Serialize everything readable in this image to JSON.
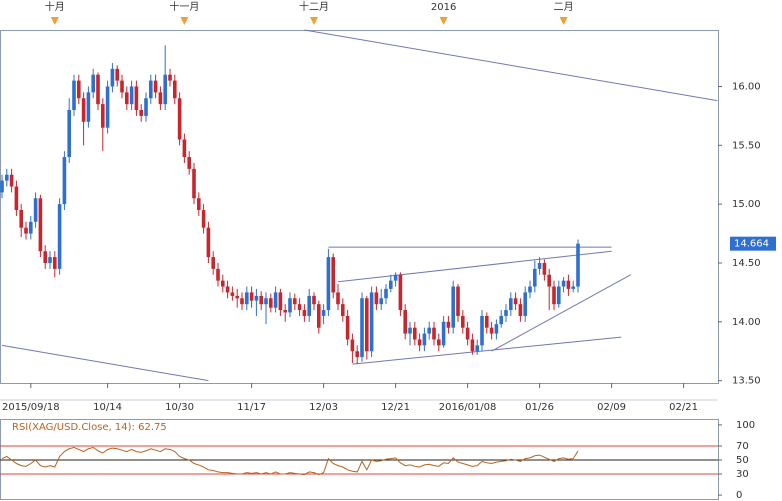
{
  "chart_data": [
    {
      "type": "candlestick",
      "categories": [
        null,
        null,
        null,
        null,
        null,
        null,
        "2015/09/18",
        null,
        null,
        null,
        null,
        null,
        null,
        null,
        null,
        null,
        null,
        null,
        null,
        null,
        null,
        null,
        "10/14",
        null,
        null,
        null,
        null,
        null,
        null,
        null,
        null,
        null,
        null,
        null,
        null,
        null,
        null,
        "10/30",
        null,
        null,
        null,
        null,
        null,
        null,
        null,
        null,
        null,
        null,
        null,
        null,
        null,
        null,
        "11/17",
        null,
        null,
        null,
        null,
        null,
        null,
        null,
        null,
        null,
        null,
        null,
        null,
        null,
        null,
        "12/03",
        null,
        null,
        null,
        null,
        null,
        null,
        null,
        null,
        null,
        null,
        null,
        null,
        null,
        null,
        "12/21",
        null,
        null,
        null,
        null,
        null,
        null,
        null,
        null,
        null,
        null,
        null,
        null,
        null,
        null,
        "2016/01/08",
        null,
        null,
        null,
        null,
        null,
        null,
        null,
        null,
        null,
        null,
        null,
        null,
        null,
        null,
        "01/26",
        null,
        null,
        null,
        null,
        null,
        null,
        null,
        null,
        null,
        null,
        null,
        null,
        null,
        null,
        "02/09",
        null,
        null,
        null,
        null,
        null,
        null,
        null,
        null,
        null,
        null,
        null,
        null,
        null,
        null,
        "02/21",
        null,
        null,
        null,
        null,
        null,
        null,
        null
      ],
      "top_categories": [
        null,
        null,
        null,
        null,
        null,
        null,
        null,
        null,
        null,
        null,
        null,
        "十月",
        null,
        null,
        null,
        null,
        null,
        null,
        null,
        null,
        null,
        null,
        null,
        null,
        null,
        null,
        null,
        null,
        null,
        null,
        null,
        null,
        null,
        null,
        null,
        null,
        null,
        null,
        "十一月",
        null,
        null,
        null,
        null,
        null,
        null,
        null,
        null,
        null,
        null,
        null,
        null,
        null,
        null,
        null,
        null,
        null,
        null,
        null,
        null,
        null,
        null,
        null,
        null,
        null,
        null,
        "十二月",
        null,
        null,
        null,
        null,
        null,
        null,
        null,
        null,
        null,
        null,
        null,
        null,
        null,
        null,
        null,
        null,
        null,
        null,
        null,
        null,
        null,
        null,
        null,
        null,
        null,
        null,
        "2016",
        null,
        null,
        null,
        null,
        null,
        null,
        null,
        null,
        null,
        null,
        null,
        null,
        null,
        null,
        null,
        null,
        null,
        null,
        null,
        null,
        null,
        null,
        null,
        null,
        "二月",
        null,
        null,
        null,
        null,
        null,
        null,
        null,
        null,
        null,
        null,
        null,
        null,
        null,
        null,
        null,
        null,
        null,
        null,
        null,
        null,
        null,
        null,
        null,
        null,
        null,
        null,
        null,
        null,
        null,
        null,
        null,
        null
      ],
      "open": [
        15.1,
        15.2,
        15.25,
        15.15,
        14.95,
        14.8,
        14.75,
        14.85,
        15.05,
        14.6,
        14.5,
        14.55,
        14.45,
        15.0,
        15.4,
        15.8,
        16.05,
        15.9,
        15.7,
        15.95,
        16.1,
        15.85,
        15.65,
        16.0,
        16.15,
        16.05,
        15.95,
        15.85,
        16.0,
        15.8,
        15.75,
        15.9,
        16.05,
        15.95,
        15.85,
        16.1,
        16.05,
        15.9,
        15.55,
        15.4,
        15.3,
        15.05,
        14.95,
        14.8,
        14.55,
        14.45,
        14.35,
        14.3,
        14.25,
        14.22,
        14.2,
        14.15,
        14.25,
        14.18,
        14.22,
        14.15,
        14.2,
        14.12,
        14.25,
        14.1,
        14.08,
        14.2,
        14.15,
        14.1,
        14.05,
        14.22,
        14.15,
        14.05,
        14.1,
        14.55,
        14.25,
        14.15,
        14.05,
        13.85,
        13.75,
        13.7,
        14.2,
        13.75,
        14.25,
        14.15,
        14.2,
        14.28,
        14.35,
        14.4,
        14.1,
        13.9,
        13.95,
        13.85,
        13.8,
        13.9,
        13.95,
        13.85,
        13.8,
        14.0,
        13.95,
        14.3,
        14.05,
        13.95,
        13.85,
        13.75,
        13.8,
        14.05,
        13.95,
        13.9,
        13.98,
        14.05,
        14.1,
        14.2,
        14.15,
        14.05,
        14.25,
        14.3,
        14.45,
        14.5,
        14.4,
        14.3,
        14.15,
        14.3,
        14.35,
        14.28,
        14.3,
        null,
        null,
        null,
        null,
        null,
        null,
        null,
        null,
        null,
        null,
        null,
        null,
        null,
        null,
        null,
        null,
        null,
        null,
        null,
        null,
        null,
        null,
        null,
        null,
        null,
        null,
        null,
        null,
        null
      ],
      "high": [
        15.25,
        15.3,
        15.3,
        15.2,
        15.0,
        14.85,
        14.9,
        15.1,
        15.08,
        14.65,
        14.6,
        14.6,
        15.05,
        15.45,
        15.9,
        16.1,
        16.1,
        15.95,
        16.0,
        16.15,
        16.12,
        15.9,
        16.05,
        16.2,
        16.18,
        16.1,
        16.0,
        16.05,
        16.05,
        15.85,
        15.95,
        16.1,
        16.1,
        16.0,
        16.35,
        16.15,
        16.1,
        15.95,
        15.6,
        15.45,
        15.35,
        15.1,
        15.0,
        14.85,
        14.6,
        14.5,
        14.4,
        14.35,
        14.3,
        14.28,
        14.25,
        14.3,
        14.3,
        14.28,
        14.26,
        14.25,
        14.24,
        14.3,
        14.28,
        14.15,
        14.25,
        14.24,
        14.2,
        14.15,
        14.28,
        14.25,
        14.18,
        14.15,
        14.62,
        14.58,
        14.32,
        14.2,
        14.1,
        13.9,
        13.8,
        14.25,
        14.22,
        14.3,
        14.3,
        14.28,
        14.32,
        14.4,
        14.42,
        14.42,
        14.15,
        14.0,
        14.0,
        13.9,
        13.95,
        14.0,
        14.0,
        13.9,
        14.05,
        14.05,
        14.35,
        14.32,
        14.1,
        14.0,
        13.9,
        13.85,
        14.1,
        14.08,
        14.0,
        14.02,
        14.1,
        14.15,
        14.25,
        14.25,
        14.2,
        14.3,
        14.35,
        14.52,
        14.55,
        14.53,
        14.45,
        14.35,
        14.35,
        14.38,
        14.4,
        14.35,
        14.7,
        null,
        null,
        null,
        null,
        null,
        null,
        null,
        null,
        null,
        null,
        null,
        null,
        null,
        null,
        null,
        null,
        null,
        null,
        null,
        null,
        null,
        null,
        null,
        null,
        null,
        null,
        null,
        null,
        null
      ],
      "low": [
        15.05,
        15.15,
        15.1,
        14.9,
        14.72,
        14.7,
        14.7,
        14.8,
        14.55,
        14.45,
        14.45,
        14.38,
        14.4,
        14.95,
        15.35,
        15.75,
        15.85,
        15.5,
        15.65,
        15.9,
        15.8,
        15.45,
        15.6,
        15.95,
        16.0,
        15.9,
        15.8,
        15.8,
        15.75,
        15.7,
        15.7,
        15.85,
        15.9,
        15.8,
        15.8,
        16.0,
        15.85,
        15.5,
        15.35,
        15.25,
        15.0,
        14.9,
        14.75,
        14.5,
        14.4,
        14.3,
        14.25,
        14.2,
        14.18,
        14.12,
        14.1,
        14.1,
        14.12,
        14.05,
        14.1,
        13.98,
        14.08,
        14.08,
        14.05,
        14.0,
        14.04,
        14.1,
        14.05,
        14.0,
        14.0,
        14.1,
        13.9,
        13.98,
        14.05,
        14.2,
        14.1,
        14.0,
        13.8,
        13.65,
        13.64,
        13.66,
        13.68,
        13.7,
        14.1,
        14.1,
        14.15,
        14.25,
        14.3,
        14.05,
        13.85,
        13.8,
        13.8,
        13.75,
        13.75,
        13.85,
        13.8,
        13.75,
        13.78,
        13.9,
        13.9,
        14.0,
        13.9,
        13.8,
        13.72,
        13.72,
        13.75,
        13.9,
        13.85,
        13.85,
        13.95,
        14.0,
        14.05,
        14.1,
        14.0,
        14.0,
        14.2,
        14.25,
        14.4,
        14.35,
        14.1,
        14.1,
        14.12,
        14.25,
        14.22,
        14.25,
        14.25,
        null,
        null,
        null,
        null,
        null,
        null,
        null,
        null,
        null,
        null,
        null,
        null,
        null,
        null,
        null,
        null,
        null,
        null,
        null,
        null,
        null,
        null,
        null,
        null,
        null,
        null,
        null,
        null,
        null
      ],
      "close": [
        15.2,
        15.25,
        15.15,
        14.95,
        14.8,
        14.75,
        14.85,
        15.05,
        14.6,
        14.5,
        14.55,
        14.45,
        15.0,
        15.4,
        15.8,
        16.05,
        15.9,
        15.7,
        15.95,
        16.1,
        15.85,
        15.65,
        16.0,
        16.15,
        16.05,
        15.95,
        15.85,
        16.0,
        15.8,
        15.75,
        15.9,
        16.05,
        15.95,
        15.85,
        16.1,
        16.05,
        15.9,
        15.55,
        15.4,
        15.3,
        15.05,
        14.95,
        14.8,
        14.55,
        14.45,
        14.35,
        14.3,
        14.25,
        14.22,
        14.2,
        14.15,
        14.25,
        14.18,
        14.22,
        14.15,
        14.2,
        14.12,
        14.25,
        14.1,
        14.08,
        14.2,
        14.15,
        14.1,
        14.05,
        14.22,
        14.15,
        13.95,
        14.1,
        14.55,
        14.25,
        14.15,
        14.05,
        13.85,
        13.75,
        13.7,
        14.2,
        13.75,
        14.25,
        14.15,
        14.2,
        14.28,
        14.35,
        14.4,
        14.1,
        13.9,
        13.95,
        13.85,
        13.8,
        13.9,
        13.95,
        13.85,
        13.8,
        14.0,
        13.95,
        14.3,
        14.05,
        13.95,
        13.85,
        13.75,
        13.8,
        14.05,
        13.95,
        13.9,
        13.98,
        14.05,
        14.1,
        14.2,
        14.15,
        14.05,
        14.25,
        14.3,
        14.45,
        14.5,
        14.4,
        14.3,
        14.15,
        14.3,
        14.35,
        14.28,
        14.3,
        14.664,
        null,
        null,
        null,
        null,
        null,
        null,
        null,
        null,
        null,
        null,
        null,
        null,
        null,
        null,
        null,
        null,
        null,
        null,
        null,
        null,
        null,
        null,
        null,
        null,
        null,
        null,
        null,
        null,
        null
      ],
      "up_color": "#2f6fd0",
      "down_color": "#c8252c",
      "ylim": [
        13.48,
        16.48
      ],
      "yticks": [
        {
          "value": 13.5,
          "label": "13.50"
        },
        {
          "value": 14,
          "label": "14.00"
        },
        {
          "value": 14.5,
          "label": "14.50"
        },
        {
          "value": 15,
          "label": "15.00"
        },
        {
          "value": 15.5,
          "label": "15.50"
        },
        {
          "value": 16,
          "label": "16.00"
        }
      ],
      "trend_color": "#6f78b4",
      "trend_lines": [
        {
          "x": [
            63,
            149
          ],
          "y": [
            16.48,
            15.88
          ]
        },
        {
          "x": [
            0,
            43
          ],
          "y": [
            13.8,
            13.5
          ]
        },
        {
          "x": [
            68,
            127
          ],
          "y": [
            14.635,
            14.635
          ]
        },
        {
          "x": [
            70,
            127
          ],
          "y": [
            14.34,
            14.6
          ]
        },
        {
          "x": [
            73,
            129
          ],
          "y": [
            13.64,
            13.87
          ]
        },
        {
          "x": [
            102,
            131
          ],
          "y": [
            13.75,
            14.4
          ]
        }
      ],
      "last_price_color": "#2f6fd0"
    },
    {
      "type": "line",
      "title": "RSI(XAG/USD.Close, 14): 62.75",
      "color": "#b8621f",
      "values": [
        52,
        55,
        50,
        45,
        42,
        41,
        45,
        50,
        42,
        40,
        42,
        40,
        55,
        62,
        66,
        68,
        65,
        62,
        66,
        68,
        63,
        60,
        65,
        67,
        66,
        64,
        62,
        65,
        62,
        61,
        63,
        66,
        64,
        62,
        66,
        65,
        62,
        55,
        52,
        50,
        45,
        43,
        40,
        36,
        35,
        33,
        32,
        32,
        31,
        30,
        30,
        32,
        31,
        32,
        30,
        32,
        30,
        33,
        30,
        30,
        32,
        31,
        30,
        29,
        33,
        32,
        29,
        32,
        52,
        45,
        42,
        40,
        36,
        34,
        33,
        48,
        36,
        50,
        48,
        49,
        51,
        52,
        53,
        46,
        42,
        43,
        41,
        40,
        43,
        44,
        42,
        41,
        46,
        45,
        53,
        47,
        45,
        43,
        41,
        42,
        48,
        46,
        45,
        47,
        48,
        49,
        51,
        50,
        48,
        52,
        53,
        56,
        57,
        54,
        51,
        48,
        52,
        53,
        51,
        52,
        62.75,
        null,
        null,
        null,
        null,
        null,
        null,
        null,
        null,
        null,
        null,
        null,
        null,
        null,
        null,
        null,
        null,
        null,
        null,
        null,
        null,
        null,
        null,
        null,
        null,
        null,
        null,
        null,
        null,
        null
      ],
      "ylim": [
        -7,
        107
      ],
      "yticks": [
        100,
        70,
        50,
        30,
        0
      ],
      "levels": [
        70,
        50,
        30
      ],
      "level_colors": [
        "#e0463c",
        "#222222",
        "#e0463c"
      ]
    }
  ]
}
